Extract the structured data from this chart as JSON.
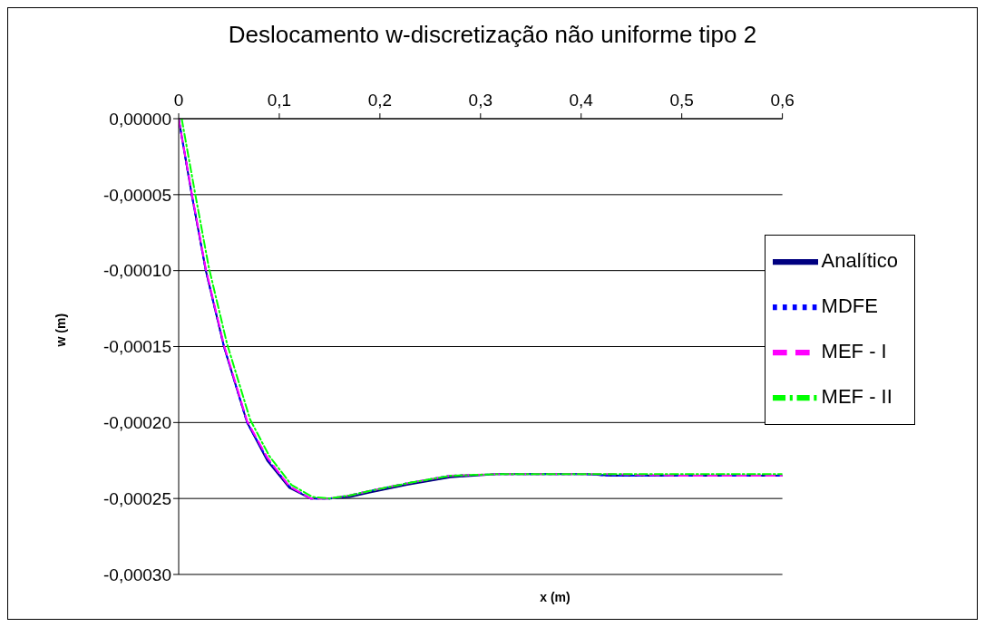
{
  "chart_data": {
    "type": "line",
    "title": "Deslocamento w-discretização não uniforme tipo 2",
    "xlabel": "x (m)",
    "ylabel": "w (m)",
    "xlim": [
      0,
      0.6
    ],
    "xticks": [
      {
        "value": 0,
        "label": "0"
      },
      {
        "value": 0.1,
        "label": "0,1"
      },
      {
        "value": 0.2,
        "label": "0,2"
      },
      {
        "value": 0.3,
        "label": "0,3"
      },
      {
        "value": 0.4,
        "label": "0,4"
      },
      {
        "value": 0.5,
        "label": "0,5"
      },
      {
        "value": 0.6,
        "label": "0,6"
      }
    ],
    "ylim": [
      -0.0003,
      0
    ],
    "yticks": [
      {
        "value": 0,
        "label": "0,00000"
      },
      {
        "value": -5e-05,
        "label": "-0,00005"
      },
      {
        "value": -0.0001,
        "label": "-0,00010"
      },
      {
        "value": -0.00015,
        "label": "-0,00015"
      },
      {
        "value": -0.0002,
        "label": "-0,00020"
      },
      {
        "value": -0.00025,
        "label": "-0,00025"
      },
      {
        "value": -0.0003,
        "label": "-0,00030"
      }
    ],
    "grid": "y",
    "legend": "right",
    "marker": "none",
    "x": [
      0,
      0.013,
      0.027,
      0.045,
      0.068,
      0.088,
      0.11,
      0.131,
      0.15,
      0.17,
      0.19,
      0.227,
      0.27,
      0.316,
      0.36,
      0.405,
      0.43,
      0.5,
      0.6
    ],
    "series": [
      {
        "name": "Analítico",
        "color": "#000080",
        "line_style": "solid",
        "values": [
          0,
          -5e-05,
          -0.0001,
          -0.00015,
          -0.0002,
          -0.000225,
          -0.000243,
          -0.00025,
          -0.00025,
          -0.000249,
          -0.000246,
          -0.000241,
          -0.000236,
          -0.000234,
          -0.000234,
          -0.000234,
          -0.000235,
          -0.000235,
          -0.000235
        ]
      },
      {
        "name": "MDFE",
        "color": "#0000ff",
        "line_style": "dotted",
        "values": [
          0,
          -5e-05,
          -0.0001,
          -0.00015,
          -0.0002,
          -0.000224,
          -0.000242,
          -0.00025,
          -0.00025,
          -0.000248,
          -0.000245,
          -0.00024,
          -0.000235,
          -0.000234,
          -0.000234,
          -0.000234,
          -0.000235,
          -0.000235,
          -0.000235
        ]
      },
      {
        "name": "MEF - I",
        "color": "#ff00ff",
        "line_style": "dashed",
        "values": [
          0,
          -4.9e-05,
          -9.9e-05,
          -0.000149,
          -0.000199,
          -0.000223,
          -0.000242,
          -0.00025,
          -0.00025,
          -0.000248,
          -0.000245,
          -0.00024,
          -0.000235,
          -0.000234,
          -0.000234,
          -0.000234,
          -0.000234,
          -0.000235,
          -0.000235
        ]
      },
      {
        "name": "MEF - II",
        "color": "#00ff00",
        "line_style": "dashed",
        "x": [
          0.003,
          0.016,
          0.03,
          0.048,
          0.071,
          0.09,
          0.112,
          0.133,
          0.15,
          0.17,
          0.19,
          0.227,
          0.27,
          0.316,
          0.36,
          0.405,
          0.43,
          0.5,
          0.6
        ],
        "values": [
          0,
          -4.8e-05,
          -9.8e-05,
          -0.000148,
          -0.000198,
          -0.000222,
          -0.000241,
          -0.000249,
          -0.00025,
          -0.000248,
          -0.000245,
          -0.00024,
          -0.000235,
          -0.000234,
          -0.000234,
          -0.000234,
          -0.000234,
          -0.000234,
          -0.000234
        ]
      }
    ]
  }
}
